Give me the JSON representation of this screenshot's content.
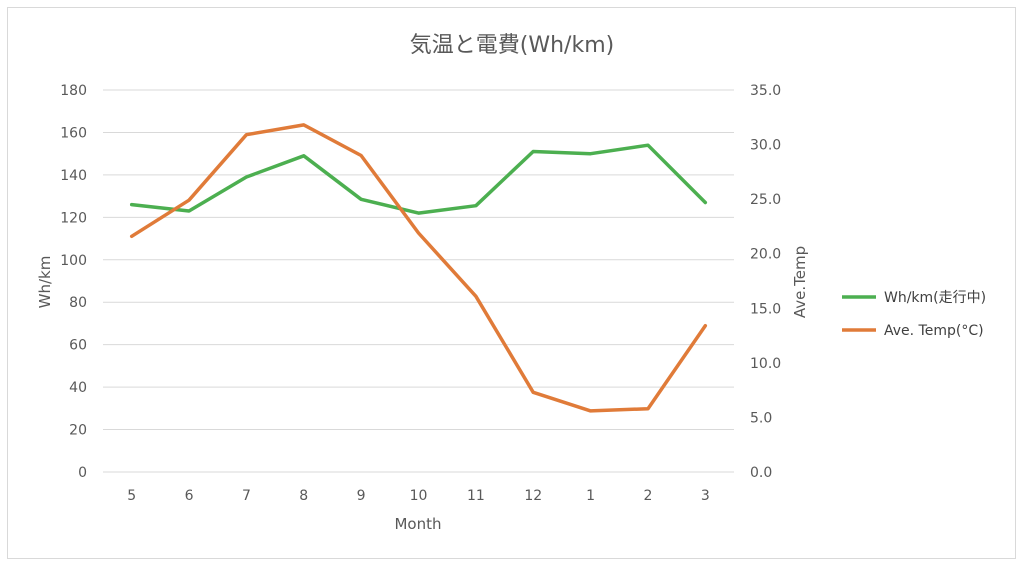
{
  "chart_data": {
    "type": "line",
    "title": "気温と電費(Wh/km)",
    "xlabel": "Month",
    "ylabel_left": "Wh/km",
    "ylabel_right": "Ave.Temp",
    "categories": [
      "5",
      "6",
      "7",
      "8",
      "9",
      "10",
      "11",
      "12",
      "1",
      "2",
      "3"
    ],
    "y_left_lim": [
      0,
      180
    ],
    "y_left_ticks": [
      "0",
      "20",
      "40",
      "60",
      "80",
      "100",
      "120",
      "140",
      "160",
      "180"
    ],
    "y_right_lim": [
      0,
      35
    ],
    "y_right_ticks": [
      "0.0",
      "5.0",
      "10.0",
      "15.0",
      "20.0",
      "25.0",
      "30.0",
      "35.0"
    ],
    "grid": true,
    "legend_position": "right",
    "series": [
      {
        "name": "Wh/km(走行中)",
        "axis": "left",
        "color": "#4caf50",
        "values": [
          126,
          123,
          139,
          149,
          128.5,
          122,
          125.5,
          151,
          150,
          154,
          127
        ]
      },
      {
        "name": "Ave. Temp(°C)",
        "axis": "right",
        "color": "#e07b39",
        "values": [
          21.6,
          24.9,
          30.9,
          31.8,
          29.0,
          21.9,
          16.1,
          7.3,
          5.6,
          5.8,
          13.4
        ]
      }
    ]
  }
}
